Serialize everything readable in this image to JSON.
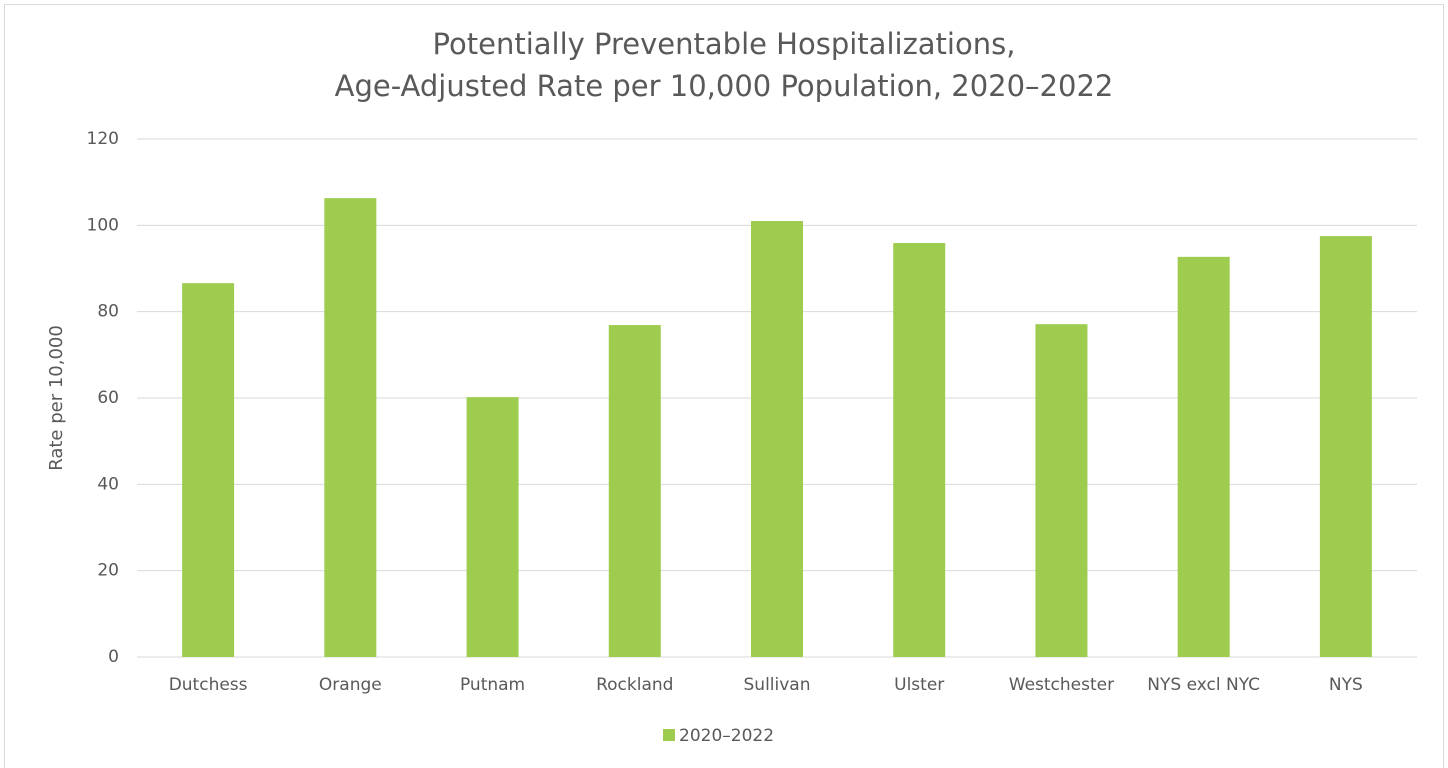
{
  "chart_data": {
    "type": "bar",
    "title": [
      "Potentially Preventable Hospitalizations,",
      "Age-Adjusted Rate per 10,000 Population, 2020–2022"
    ],
    "y_label": "Rate per 10,000",
    "categories": [
      "Dutchess",
      "Orange",
      "Putnam",
      "Rockland",
      "Sullivan",
      "Ulster",
      "Westchester",
      "NYS excl NYC",
      "NYS"
    ],
    "series": [
      {
        "name": "2020–2022",
        "color": "#9dcc4e",
        "values": [
          86.6,
          106.3,
          60.2,
          76.9,
          101.0,
          95.9,
          77.1,
          92.7,
          97.5
        ]
      }
    ],
    "ylim": [
      0,
      120
    ],
    "yticks": [
      0,
      20,
      40,
      60,
      80,
      100,
      120
    ],
    "grid": true,
    "legend": "bottom"
  }
}
